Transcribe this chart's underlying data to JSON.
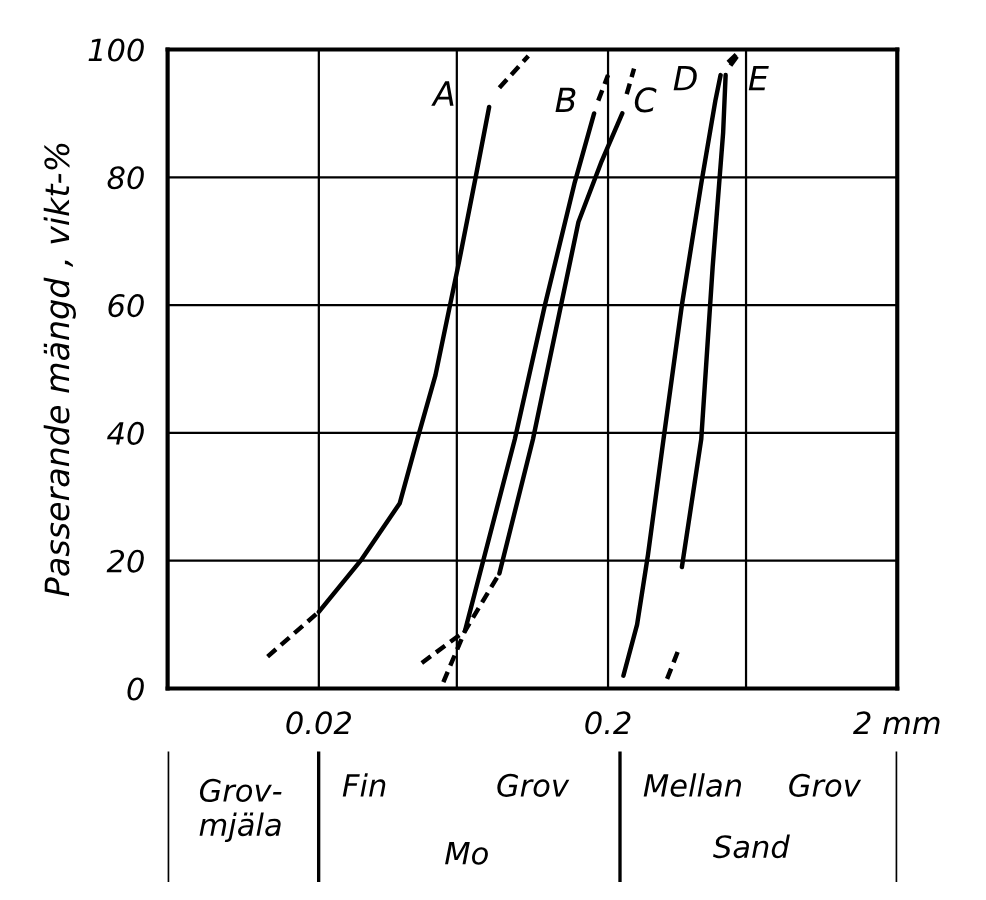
{
  "chart_data": {
    "type": "line",
    "ylabel": "Passerande mängd , vikt-%",
    "log": "x",
    "xlim": [
      0.006,
      2
    ],
    "ylim": [
      0,
      100
    ],
    "xticks": [
      {
        "value": 0.02,
        "label": "0.02"
      },
      {
        "value": 0.06,
        "label": null
      },
      {
        "value": 0.2,
        "label": "0.2"
      },
      {
        "value": 0.6,
        "label": null
      },
      {
        "value": 2,
        "label": "2 mm"
      }
    ],
    "yticks": [
      0,
      20,
      40,
      60,
      80,
      100
    ],
    "grid": true,
    "marker": "none",
    "color": "#000000",
    "series": [
      {
        "name": "A",
        "line_style": "solid",
        "x": [
          0.02,
          0.0279,
          0.0381,
          0.0438,
          0.0506,
          0.0612,
          0.0697,
          0.0776
        ],
        "values": [
          12,
          20,
          29,
          39,
          49,
          67,
          80,
          91
        ]
      },
      {
        "line_style": "dashed",
        "x": [
          0.0133,
          0.02
        ],
        "values": [
          5,
          12
        ]
      },
      {
        "line_style": "dashed",
        "x": [
          0.0842,
          0.106
        ],
        "values": [
          94,
          99
        ]
      },
      {
        "name": "B",
        "line_style": "solid",
        "x": [
          0.064,
          0.0952,
          0.121,
          0.153,
          0.179
        ],
        "values": [
          9,
          39,
          60,
          79,
          90
        ]
      },
      {
        "line_style": "dashed",
        "x": [
          0.0454,
          0.064
        ],
        "values": [
          4,
          9
        ]
      },
      {
        "line_style": "dashed",
        "x": [
          0.185,
          0.2
        ],
        "values": [
          92,
          96
        ]
      },
      {
        "name": "C",
        "line_style": "solid",
        "x": [
          0.0842,
          0.11,
          0.158,
          0.19,
          0.224
        ],
        "values": [
          18,
          39,
          73,
          82.5,
          90
        ]
      },
      {
        "line_style": "dashed",
        "x": [
          0.0539,
          0.064,
          0.0842
        ],
        "values": [
          1,
          9,
          18
        ]
      },
      {
        "line_style": "dashed",
        "x": [
          0.232,
          0.246
        ],
        "values": [
          93,
          97
        ]
      },
      {
        "name": "D",
        "line_style": "solid",
        "x": [
          0.226,
          0.252,
          0.275,
          0.311,
          0.36,
          0.42,
          0.47,
          0.49
        ],
        "values": [
          2,
          10,
          21,
          39,
          60,
          79,
          92,
          96
        ]
      },
      {
        "line_style": "dashed",
        "x": [
          0.52,
          0.57
        ],
        "values": [
          98,
          99.7
        ]
      },
      {
        "name": "E",
        "line_style": "solid",
        "x": [
          0.36,
          0.42,
          0.46,
          0.5,
          0.51
        ],
        "values": [
          19,
          39,
          66,
          87,
          96
        ]
      },
      {
        "line_style": "dashed",
        "x": [
          0.32,
          0.35
        ],
        "values": [
          1.5,
          6
        ]
      },
      {
        "line_style": "dashed",
        "x": [
          0.53,
          0.56
        ],
        "values": [
          97.5,
          99
        ]
      }
    ],
    "annotations": [
      "Grov-\nmjäla",
      "Fin",
      "Grov",
      "Mo",
      "Mellan",
      "Grov",
      "Sand"
    ]
  }
}
